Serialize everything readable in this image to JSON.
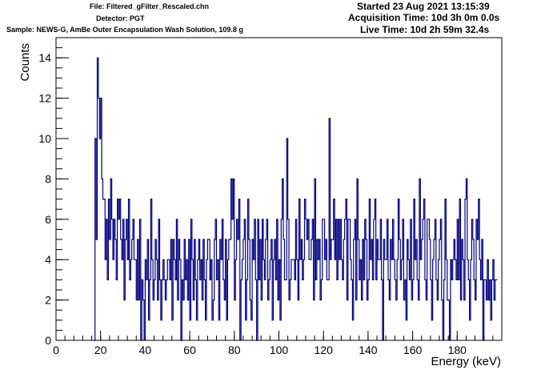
{
  "header": {
    "file": "File: Filtered_gFilter_Rescaled.chn",
    "detector": "Detector: PGT",
    "sample": "Sample: NEWS-G, AmBe Outer Encapsulation Wash Solution, 109.8 g",
    "started": "Started 23 Aug 2021 13:15:39",
    "acquisition_time": "Acquisition Time: 10d 3h 0m 0.0s",
    "live_time": "Live Time: 10d 2h 59m 32.4s"
  },
  "chart_data": {
    "type": "line",
    "style": "step histogram",
    "xlabel": "Energy (keV)",
    "ylabel": "Counts",
    "xlim": [
      0,
      200
    ],
    "ylim": [
      0,
      15
    ],
    "x_ticks": [
      0,
      20,
      40,
      60,
      80,
      100,
      120,
      140,
      160,
      180
    ],
    "y_ticks": [
      0,
      2,
      4,
      6,
      8,
      10,
      12,
      14
    ],
    "color": "#000080",
    "grid": false,
    "legend": "none",
    "start_x": 17.0,
    "bin_width": 0.5,
    "counts": [
      0,
      10,
      5,
      14,
      12,
      10,
      12,
      8,
      7,
      7,
      4,
      6,
      3,
      7,
      5,
      8,
      6,
      4,
      6,
      5,
      3,
      7,
      6,
      7,
      5,
      4,
      6,
      2,
      5,
      6,
      4,
      7,
      3,
      4,
      5,
      6,
      4,
      4,
      2,
      5,
      2,
      6,
      0,
      3,
      2,
      0,
      4,
      3,
      5,
      1,
      3,
      7,
      4,
      2,
      3,
      5,
      4,
      2,
      6,
      3,
      1,
      3,
      4,
      3,
      2,
      3,
      4,
      4,
      3,
      5,
      1,
      5,
      4,
      3,
      6,
      2,
      5,
      4,
      0,
      3,
      2,
      5,
      3,
      4,
      2,
      5,
      1,
      6,
      4,
      2,
      5,
      3,
      1,
      4,
      5,
      3,
      4,
      2,
      5,
      3,
      1,
      4,
      5,
      5,
      3,
      4,
      1,
      2,
      5,
      6,
      3,
      4,
      1,
      5,
      4,
      6,
      3,
      2,
      5,
      1,
      4,
      5,
      5,
      8,
      6,
      8,
      2,
      4,
      6,
      5,
      7,
      0,
      3,
      4,
      5,
      6,
      1,
      3,
      7,
      5,
      2,
      1,
      5,
      4,
      6,
      3,
      0,
      6,
      3,
      5,
      2,
      6,
      4,
      3,
      5,
      6,
      2,
      3,
      4,
      5,
      1,
      4,
      5,
      3,
      6,
      2,
      4,
      1,
      6,
      8,
      5,
      3,
      3,
      10,
      6,
      2,
      3,
      4,
      4,
      4,
      3,
      6,
      4,
      2,
      7,
      4,
      5,
      3,
      4,
      7,
      6,
      5,
      6,
      4,
      4,
      5,
      6,
      2,
      8,
      3,
      5,
      4,
      5,
      2,
      3,
      6,
      6,
      4,
      5,
      3,
      3,
      11,
      4,
      5,
      5,
      7,
      4,
      6,
      3,
      6,
      4,
      6,
      4,
      3,
      5,
      6,
      7,
      2,
      6,
      6,
      4,
      3,
      1,
      5,
      6,
      2,
      8,
      5,
      3,
      4,
      2,
      5,
      3,
      6,
      5,
      2,
      3,
      7,
      4,
      5,
      3,
      6,
      7,
      3,
      5,
      4,
      4,
      6,
      3,
      0,
      5,
      4,
      4,
      6,
      3,
      2,
      5,
      4,
      6,
      4,
      3,
      2,
      4,
      7,
      5,
      3,
      4,
      6,
      2,
      3,
      1,
      5,
      4,
      3,
      6,
      2,
      3,
      7,
      4,
      5,
      3,
      2,
      8,
      4,
      5,
      6,
      7,
      3,
      2,
      6,
      6,
      5,
      3,
      1,
      4,
      5,
      6,
      3,
      2,
      4,
      5,
      6,
      2,
      0,
      3,
      7,
      4,
      2,
      2,
      0,
      4,
      3,
      4,
      5,
      4,
      3,
      6,
      3,
      7,
      2,
      5,
      4,
      2,
      7,
      8,
      4,
      3,
      1,
      4,
      6,
      5,
      3,
      2,
      6,
      5,
      7,
      4,
      3,
      5,
      0,
      3,
      3,
      2,
      4,
      2,
      3,
      1,
      3,
      4,
      2,
      3,
      3
    ]
  }
}
